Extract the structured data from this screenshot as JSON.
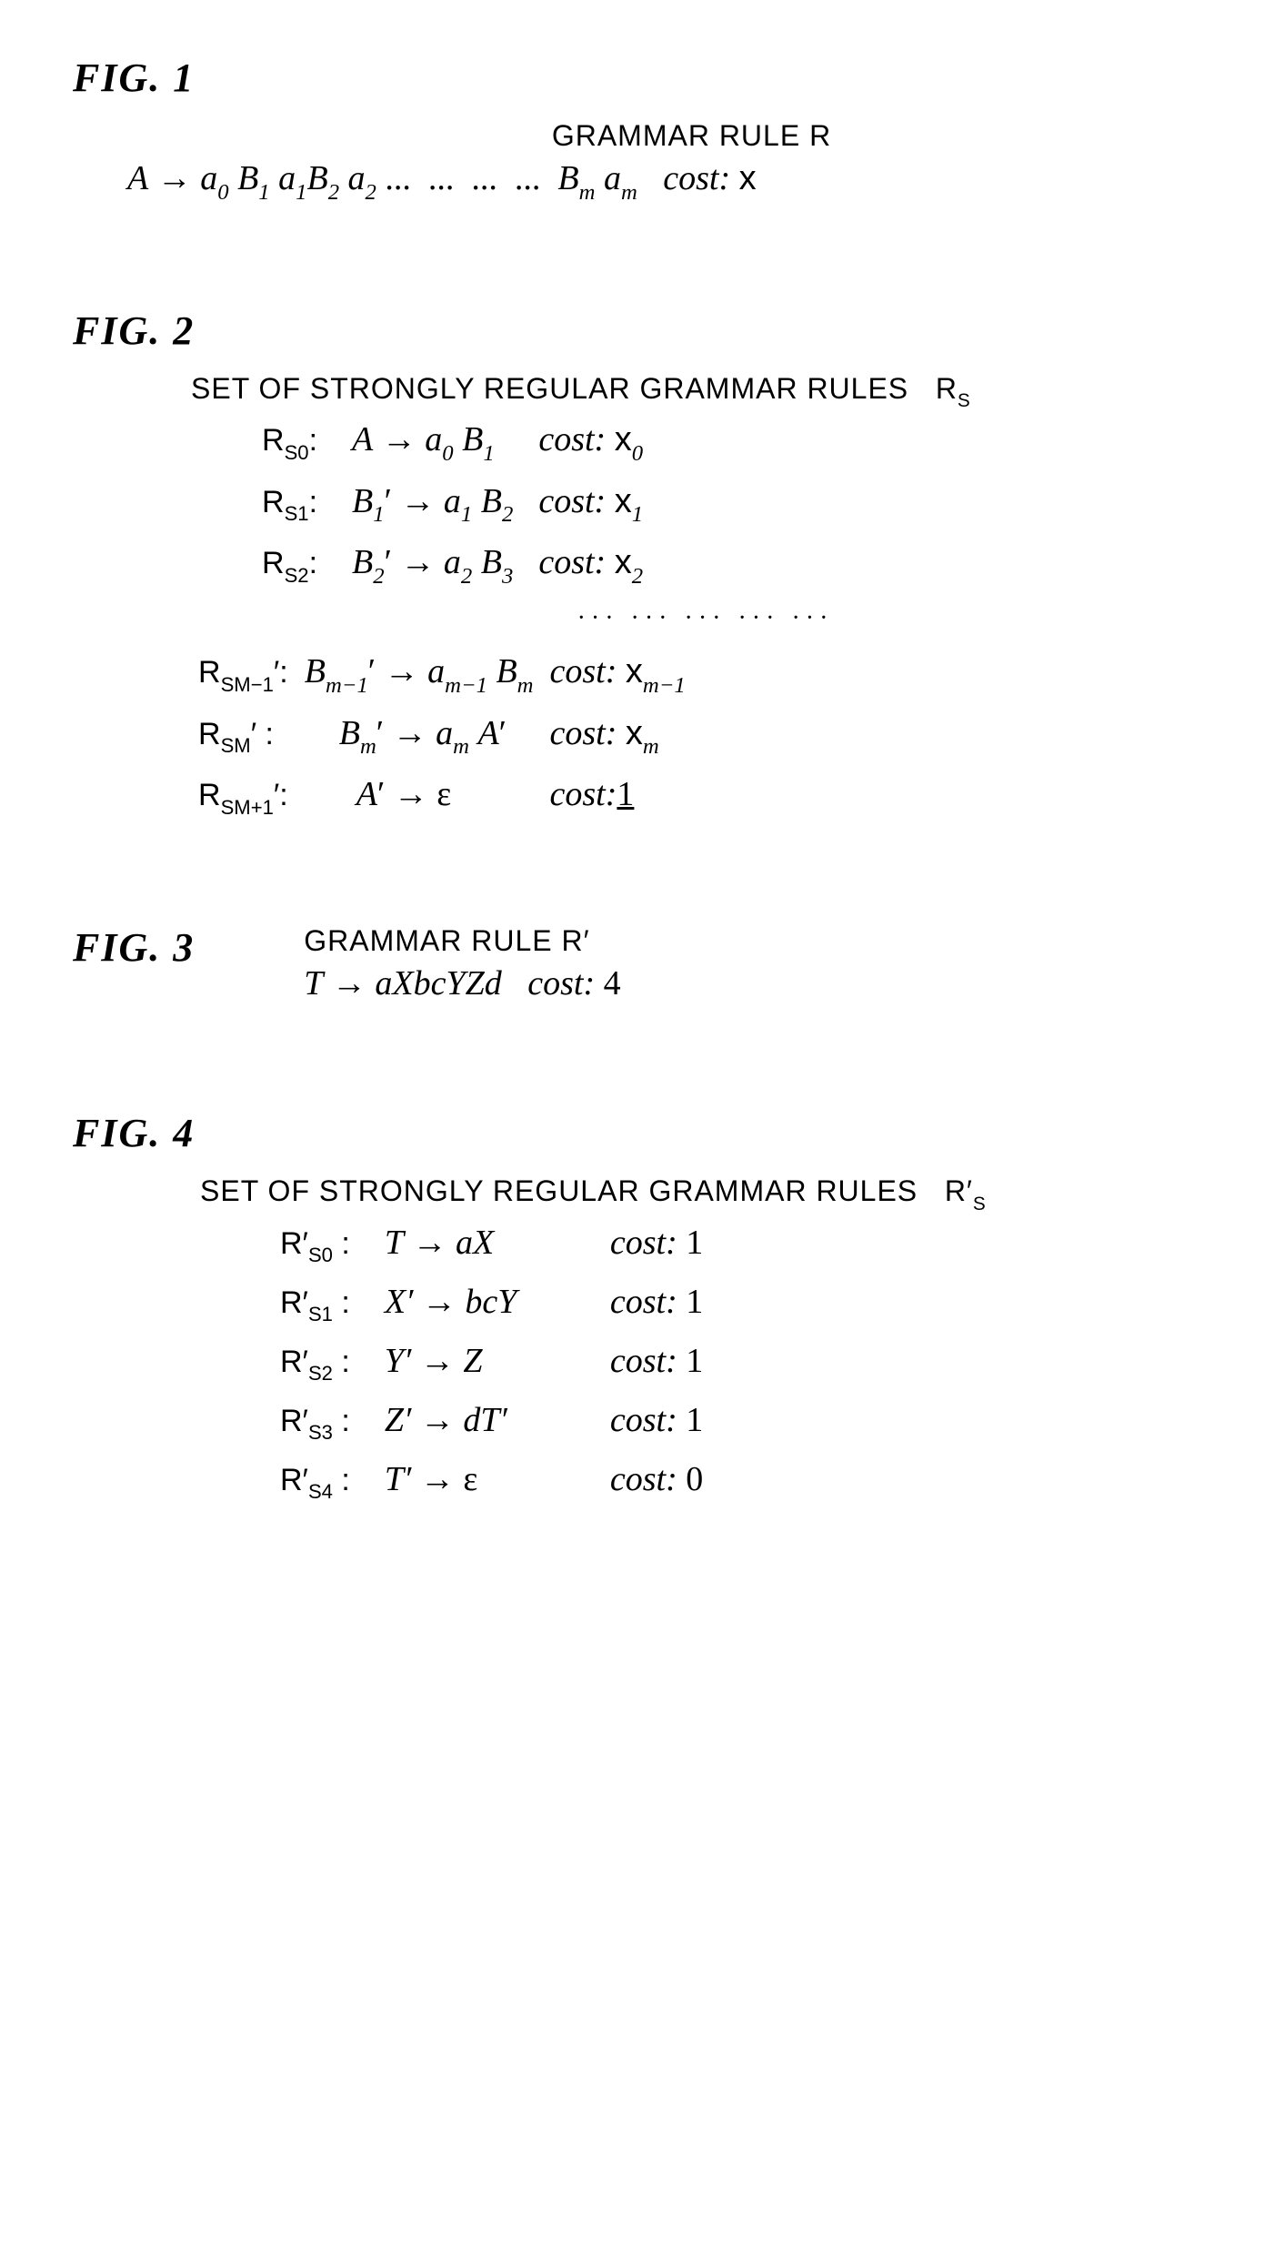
{
  "fig1": {
    "label": "FIG.  1",
    "header": "GRAMMAR RULE R",
    "rule_html": "<span class='ital'>A</span> <span class='arrow'>→</span> <span class='ital'>a</span><span class='sub'>0</span> <span class='ital'>B</span><span class='sub'>1</span> <span class='ital'>a</span><span class='sub'>1</span><span class='ital'>B</span><span class='sub'>2</span> <span class='ital'>a</span><span class='sub'>2</span> ...&nbsp;&nbsp;...&nbsp;&nbsp;...&nbsp;&nbsp;...&nbsp; <span class='ital'>B</span><span class='sub'>m</span> <span class='ital'>a</span><span class='sub'>m</span>&nbsp;&nbsp;&nbsp;<span class='cost'>cost:</span> <span style='font-family:Arial'>x</span>"
  },
  "fig2": {
    "label": "FIG.  2",
    "header": "SET OF STRONGLY REGULAR GRAMMAR RULES&nbsp;&nbsp;&nbsp;R<span class='subn'>S</span>",
    "rows": [
      {
        "label": "R<span class='subn'>S0</span>:",
        "body": "<span class='ital'>A</span> <span class='arrow'>→</span> <span class='ital'>a</span><span class='sub'>0</span> <span class='ital'>B</span><span class='sub'>1</span>",
        "cost": "<span class='cost'>cost:</span> <span style='font-family:Arial'>x</span><span class='sub'>0</span>"
      },
      {
        "label": "R<span class='subn'>S1</span>:",
        "body": "<span class='ital'>B</span><span class='sub'>1</span>′ <span class='arrow'>→</span> <span class='ital'>a</span><span class='sub'>1</span> <span class='ital'>B</span><span class='sub'>2</span>",
        "cost": "<span class='cost'>cost:</span> <span style='font-family:Arial'>x</span><span class='sub'>1</span>"
      },
      {
        "label": "R<span class='subn'>S2</span>:",
        "body": "<span class='ital'>B</span><span class='sub'>2</span>′ <span class='arrow'>→</span> <span class='ital'>a</span><span class='sub'>2</span> <span class='ital'>B</span><span class='sub'>3</span>",
        "cost": "<span class='cost'>cost:</span> <span style='font-family:Arial'>x</span><span class='sub'>2</span>"
      }
    ],
    "dots": "···  ···  ···  ···  ···",
    "rows2": [
      {
        "label": "R<span class='subn'>SM−1</span>′:",
        "body": "<span class='ital'>B</span><span class='sub'>m−1</span>′ <span class='arrow'>→</span> <span class='ital'>a</span><span class='sub'>m−1</span> <span class='ital'>B</span><span class='sub'>m</span>",
        "cost": "<span class='cost'>cost:</span> <span style='font-family:Arial'>x</span><span class='sub'>m−1</span>"
      },
      {
        "label": "R<span class='subn'>SM</span>′&nbsp;:",
        "body": "&nbsp;&nbsp;&nbsp;&nbsp;<span class='ital'>B</span><span class='sub'>m</span>′ <span class='arrow'>→</span> <span class='ital'>a</span><span class='sub'>m</span> <span class='ital'>A</span>′",
        "cost": "<span class='cost'>cost:</span> <span style='font-family:Arial'>x</span><span class='sub'>m</span>"
      },
      {
        "label": "R<span class='subn'>SM+1</span>′:",
        "body": "&nbsp;&nbsp;&nbsp;&nbsp;&nbsp;&nbsp;<span class='ital'>A</span>′ <span class='arrow'>→</span> ε",
        "cost": "<span class='cost'>cost:</span><span class='underline'>1</span>"
      }
    ]
  },
  "fig3": {
    "label": "FIG.  3",
    "header": "GRAMMAR RULE R′",
    "rule_html": "<span class='ital'>T</span> <span class='arrow'>→</span> <span class='ital'>aXbcYZd</span>&nbsp;&nbsp;&nbsp;<span class='cost'>cost:</span> 4"
  },
  "fig4": {
    "label": "FIG.  4",
    "header": "SET OF STRONGLY REGULAR GRAMMAR RULES&nbsp;&nbsp;&nbsp;R′<span class='subn'>S</span>",
    "rows": [
      {
        "label": "R′<span class='subn'>S0</span>&nbsp;:",
        "body": "<span class='ital'>T</span> <span class='arrow'>→</span> <span class='ital'>aX</span>",
        "cost": "<span class='cost'>cost:</span> 1"
      },
      {
        "label": "R′<span class='subn'>S1</span>&nbsp;:",
        "body": "<span class='ital'>X′</span> <span class='arrow'>→</span> <span class='ital'>bcY</span>",
        "cost": "<span class='cost'>cost:</span> 1"
      },
      {
        "label": "R′<span class='subn'>S2</span>&nbsp;:",
        "body": "<span class='ital'>Y′</span> <span class='arrow'>→</span> <span class='ital'>Z</span>",
        "cost": "<span class='cost'>cost:</span> 1"
      },
      {
        "label": "R′<span class='subn'>S3</span>&nbsp;:",
        "body": "<span class='ital'>Z′</span> <span class='arrow'>→</span> <span class='ital'>dT′</span>",
        "cost": "<span class='cost'>cost:</span> 1"
      },
      {
        "label": "R′<span class='subn'>S4</span>&nbsp;:",
        "body": "<span class='ital'>T′</span> <span class='arrow'>→</span> ε",
        "cost": "<span class='cost'>cost:</span> 0"
      }
    ]
  },
  "colors": {
    "text": "#000000",
    "bg": "#ffffff"
  }
}
